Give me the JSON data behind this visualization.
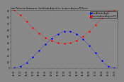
{
  "title": "Solar PV/Inverter Performance  Sun Altitude Angle & Sun Incidence Angle on PV Panels",
  "bg_color": "#888888",
  "plot_bg_color": "#888888",
  "grid_color": "#999999",
  "text_color": "#000000",
  "x_times": [
    "04:15",
    "05:15",
    "06:15",
    "07:15",
    "08:15",
    "09:15",
    "10:15",
    "11:15",
    "12:15",
    "13:15",
    "14:15",
    "15:15",
    "16:15",
    "17:15",
    "18:15",
    "19:15",
    "20:15"
  ],
  "sun_altitude": [
    0,
    2,
    8,
    17,
    27,
    37,
    46,
    53,
    57,
    57,
    53,
    45,
    35,
    23,
    11,
    2,
    0
  ],
  "sun_incidence": [
    90,
    82,
    72,
    63,
    54,
    47,
    42,
    39,
    38,
    39,
    43,
    49,
    57,
    67,
    78,
    88,
    90
  ],
  "altitude_color": "#0000ff",
  "incidence_color": "#ff0000",
  "altitude_label": "Sun Altitude Angle",
  "incidence_label": "Sun Incidence Angle on PV",
  "ylim": [
    0,
    90
  ],
  "ytick_values": [
    0,
    10,
    20,
    30,
    40,
    50,
    60,
    70,
    80,
    90
  ],
  "legend_bg": "#888888",
  "legend_border": "#000000"
}
